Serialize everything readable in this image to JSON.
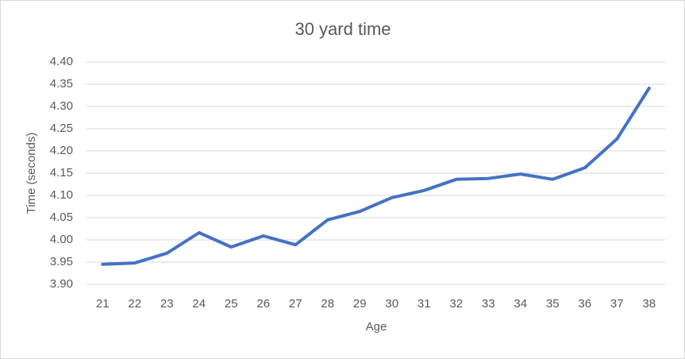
{
  "chart_data": {
    "type": "line",
    "title": "30 yard time",
    "x_label": "Age",
    "y_label": "Time (seconds)",
    "categories": [
      21,
      22,
      23,
      24,
      25,
      26,
      27,
      28,
      29,
      30,
      31,
      32,
      33,
      34,
      35,
      36,
      37,
      38
    ],
    "values": [
      3.945,
      3.948,
      3.97,
      4.016,
      3.984,
      4.009,
      3.989,
      4.045,
      4.064,
      4.095,
      4.111,
      4.136,
      4.138,
      4.148,
      4.136,
      4.162,
      4.227,
      4.341
    ],
    "color": "#4472c4",
    "ylim": [
      3.9,
      4.4
    ],
    "yticks": [
      {
        "value": 3.9,
        "label": "3.90"
      },
      3.95,
      {
        "value": 4.0,
        "label": "4.00"
      },
      4.05,
      {
        "value": 4.1,
        "label": "4.10"
      },
      4.15,
      {
        "value": 4.2,
        "label": "4.20"
      },
      4.25,
      {
        "value": 4.3,
        "label": "4.30"
      },
      4.35,
      {
        "value": 4.4,
        "label": "4.40"
      }
    ],
    "grid": true
  }
}
